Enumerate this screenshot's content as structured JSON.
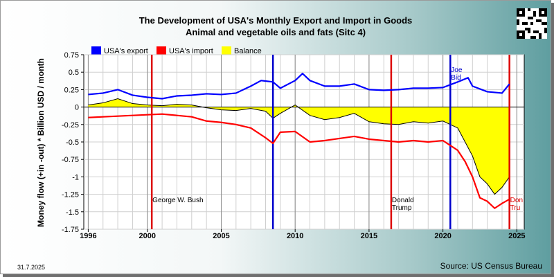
{
  "title_line1": "The Development of USA's Monthly Export and Import in Goods",
  "title_line2": "Animal and vegetable oils and fats (Sitc 4)",
  "y_axis_label": "Money flow (+in -out) * Billion USD / month",
  "date_stamp": "31.7.2025",
  "source": "Source: US Census Bureau",
  "colors": {
    "export": "#0000ff",
    "import": "#ff0000",
    "balance": "#ffff00",
    "event_line": "#dd0000",
    "president_line": "#0000cc"
  },
  "chart_data": {
    "type": "line",
    "xlim": [
      1995.7,
      2025.5
    ],
    "ylim": [
      -1.75,
      0.75
    ],
    "yticks": [
      0.75,
      0.5,
      0.25,
      0,
      -0.25,
      -0.5,
      -0.75,
      -1,
      -1.25,
      -1.5,
      -1.75
    ],
    "ytick_labels": [
      "0.75",
      "0.5",
      "0.25",
      "0",
      "-0.25",
      "-0.5",
      "-0.75",
      "-1",
      "-1.25",
      "-1.5",
      "-1.75"
    ],
    "xticks": [
      1996,
      2000,
      2005,
      2010,
      2015,
      2020,
      2025
    ],
    "xtick_labels": [
      "1996",
      "2000",
      "2005",
      "2010",
      "2015",
      "2020",
      "2025"
    ],
    "grid": true,
    "legend_position": "top-left",
    "series": [
      {
        "name": "USA's export",
        "key": "export",
        "x": [
          1996.0,
          1997.0,
          1998.0,
          1999.0,
          2000.0,
          2001.0,
          2002.0,
          2003.0,
          2004.0,
          2005.0,
          2006.0,
          2007.0,
          2007.7,
          2008.5,
          2009.0,
          2010.0,
          2010.5,
          2011.0,
          2012.0,
          2013.0,
          2014.0,
          2015.0,
          2016.0,
          2017.0,
          2018.0,
          2019.0,
          2020.0,
          2021.0,
          2021.7,
          2022.0,
          2023.0,
          2024.0,
          2024.5
        ],
        "y": [
          0.18,
          0.2,
          0.25,
          0.17,
          0.14,
          0.12,
          0.16,
          0.17,
          0.19,
          0.18,
          0.2,
          0.3,
          0.38,
          0.36,
          0.27,
          0.38,
          0.48,
          0.38,
          0.3,
          0.3,
          0.33,
          0.25,
          0.24,
          0.25,
          0.27,
          0.27,
          0.28,
          0.36,
          0.42,
          0.3,
          0.22,
          0.2,
          0.33
        ]
      },
      {
        "name": "USA's import",
        "key": "import",
        "x": [
          1996.0,
          1997.0,
          1998.0,
          1999.0,
          2000.0,
          2001.0,
          2002.0,
          2003.0,
          2004.0,
          2005.0,
          2006.0,
          2007.0,
          2008.0,
          2008.5,
          2009.0,
          2010.0,
          2011.0,
          2012.0,
          2013.0,
          2014.0,
          2015.0,
          2016.0,
          2017.0,
          2018.0,
          2019.0,
          2020.0,
          2020.5,
          2021.0,
          2021.5,
          2022.0,
          2022.5,
          2023.0,
          2023.5,
          2024.0,
          2024.5
        ],
        "y": [
          -0.15,
          -0.14,
          -0.13,
          -0.12,
          -0.11,
          -0.1,
          -0.12,
          -0.14,
          -0.2,
          -0.22,
          -0.25,
          -0.3,
          -0.44,
          -0.52,
          -0.36,
          -0.35,
          -0.5,
          -0.48,
          -0.45,
          -0.42,
          -0.46,
          -0.48,
          -0.5,
          -0.48,
          -0.5,
          -0.48,
          -0.55,
          -0.62,
          -0.78,
          -1.0,
          -1.3,
          -1.35,
          -1.45,
          -1.38,
          -1.32
        ]
      },
      {
        "name": "Balance",
        "key": "balance",
        "x": [
          1996.0,
          1997.0,
          1998.0,
          1999.0,
          2000.0,
          2001.0,
          2002.0,
          2003.0,
          2004.0,
          2005.0,
          2006.0,
          2007.0,
          2008.0,
          2008.5,
          2009.0,
          2010.0,
          2011.0,
          2012.0,
          2013.0,
          2014.0,
          2015.0,
          2016.0,
          2017.0,
          2018.0,
          2019.0,
          2020.0,
          2021.0,
          2021.5,
          2022.0,
          2022.5,
          2023.0,
          2023.5,
          2024.0,
          2024.5
        ],
        "y": [
          0.03,
          0.06,
          0.12,
          0.05,
          0.03,
          0.02,
          0.04,
          0.03,
          -0.01,
          -0.04,
          -0.05,
          -0.02,
          -0.06,
          -0.16,
          -0.09,
          0.03,
          -0.12,
          -0.18,
          -0.15,
          -0.09,
          -0.21,
          -0.24,
          -0.25,
          -0.21,
          -0.23,
          -0.2,
          -0.3,
          -0.5,
          -0.7,
          -1.0,
          -1.1,
          -1.25,
          -1.15,
          -1.0
        ]
      }
    ],
    "events": [
      {
        "x": 2000.3,
        "kind": "event_line",
        "label_lines": [
          "George W. Bush"
        ]
      },
      {
        "x": 2008.5,
        "kind": "president_line",
        "label_lines": []
      },
      {
        "x": 2016.5,
        "kind": "event_line",
        "label_lines": [
          "Donald",
          "Trump"
        ]
      },
      {
        "x": 2020.5,
        "kind": "president_line",
        "label_lines": [
          "Joe",
          "Bid"
        ]
      },
      {
        "x": 2024.5,
        "kind": "event_line",
        "label_lines": [
          "Don",
          "Tru"
        ]
      }
    ]
  }
}
